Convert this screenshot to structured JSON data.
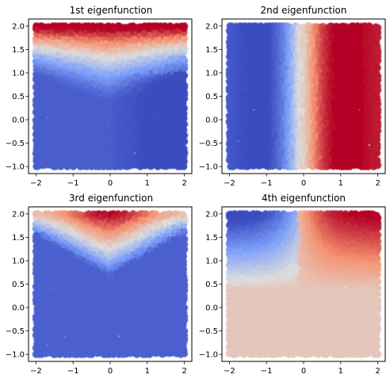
{
  "chart_data": [
    {
      "type": "scatter",
      "title": "1st eigenfunction",
      "xlabel": "",
      "ylabel": "",
      "xlim": [
        -2.2,
        2.2
      ],
      "ylim": [
        -1.15,
        2.15
      ],
      "xticks": [
        "−2",
        "−1",
        "0",
        "1",
        "2"
      ],
      "xtick_values": [
        -2,
        -1,
        0,
        1,
        2
      ],
      "yticks": [
        "−1.0",
        "−0.5",
        "0.0",
        "0.5",
        "1.0",
        "1.5",
        "2.0"
      ],
      "ytick_values": [
        -1.0,
        -0.5,
        0.0,
        0.5,
        1.0,
        1.5,
        2.0
      ],
      "colormap": "coolwarm",
      "points_domain": {
        "x": [
          -2,
          2
        ],
        "y": [
          -1,
          2
        ]
      },
      "pattern": "red band along top edge dipping as a V toward (0, 1); blue elsewhere, darker toward lower right"
    },
    {
      "type": "scatter",
      "title": "2nd eigenfunction",
      "xlabel": "",
      "ylabel": "",
      "xlim": [
        -2.2,
        2.2
      ],
      "ylim": [
        -1.15,
        2.15
      ],
      "xticks": [
        "−2",
        "−1",
        "0",
        "1",
        "2"
      ],
      "xtick_values": [
        -2,
        -1,
        0,
        1,
        2
      ],
      "yticks": [
        "−1.0",
        "−0.5",
        "0.0",
        "0.5",
        "1.0",
        "1.5",
        "2.0"
      ],
      "ytick_values": [
        -1.0,
        -0.5,
        0.0,
        0.5,
        1.0,
        1.5,
        2.0
      ],
      "colormap": "coolwarm",
      "points_domain": {
        "x": [
          -2,
          2
        ],
        "y": [
          -1,
          2
        ]
      },
      "pattern": "antisymmetric in x: blue for x < 0, red for x > 0, strongest near (±1, 0)"
    },
    {
      "type": "scatter",
      "title": "3rd eigenfunction",
      "xlabel": "",
      "ylabel": "",
      "xlim": [
        -2.2,
        2.2
      ],
      "ylim": [
        -1.15,
        2.15
      ],
      "xticks": [
        "−2",
        "−1",
        "0",
        "1",
        "2"
      ],
      "xtick_values": [
        -2,
        -1,
        0,
        1,
        2
      ],
      "yticks": [
        "−1.0",
        "−0.5",
        "0.0",
        "0.5",
        "1.0",
        "1.5",
        "2.0"
      ],
      "ytick_values": [
        -1.0,
        -0.5,
        0.0,
        0.5,
        1.0,
        1.5,
        2.0
      ],
      "colormap": "coolwarm",
      "points_domain": {
        "x": [
          -2,
          2
        ],
        "y": [
          -1,
          2
        ]
      },
      "pattern": "deep red V-shaped lobe centred at x = 0 near the top; blue below"
    },
    {
      "type": "scatter",
      "title": "4th eigenfunction",
      "xlabel": "",
      "ylabel": "",
      "xlim": [
        -2.2,
        2.2
      ],
      "ylim": [
        -1.15,
        2.15
      ],
      "xticks": [
        "−2",
        "−1",
        "0",
        "1",
        "2"
      ],
      "xtick_values": [
        -2,
        -1,
        0,
        1,
        2
      ],
      "yticks": [
        "−1.0",
        "−0.5",
        "0.0",
        "0.5",
        "1.0",
        "1.5",
        "2.0"
      ],
      "ytick_values": [
        -1.0,
        -0.5,
        0.0,
        0.5,
        1.0,
        1.5,
        2.0
      ],
      "colormap": "coolwarm",
      "points_domain": {
        "x": [
          -2,
          2
        ],
        "y": [
          -1,
          2
        ]
      },
      "pattern": "top-left blue, top-right red, lower half near-neutral light pink"
    }
  ]
}
